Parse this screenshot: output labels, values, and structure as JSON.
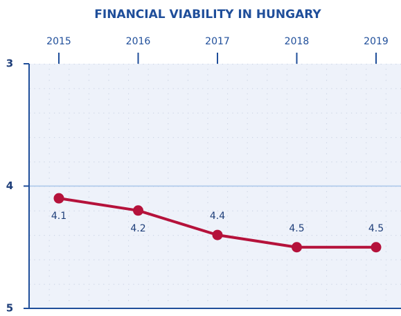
{
  "chart_data": {
    "type": "line",
    "title": "FINANCIAL VIABILITY IN HUNGARY",
    "categories": [
      "2015",
      "2016",
      "2017",
      "2018",
      "2019"
    ],
    "series": [
      {
        "color": "#b5123b",
        "values": [
          4.1,
          4.2,
          4.4,
          4.5,
          4.5
        ]
      }
    ],
    "ylim": [
      3,
      5
    ],
    "yticks": [
      3,
      4,
      5
    ],
    "y_inverted": true,
    "grid": true
  }
}
